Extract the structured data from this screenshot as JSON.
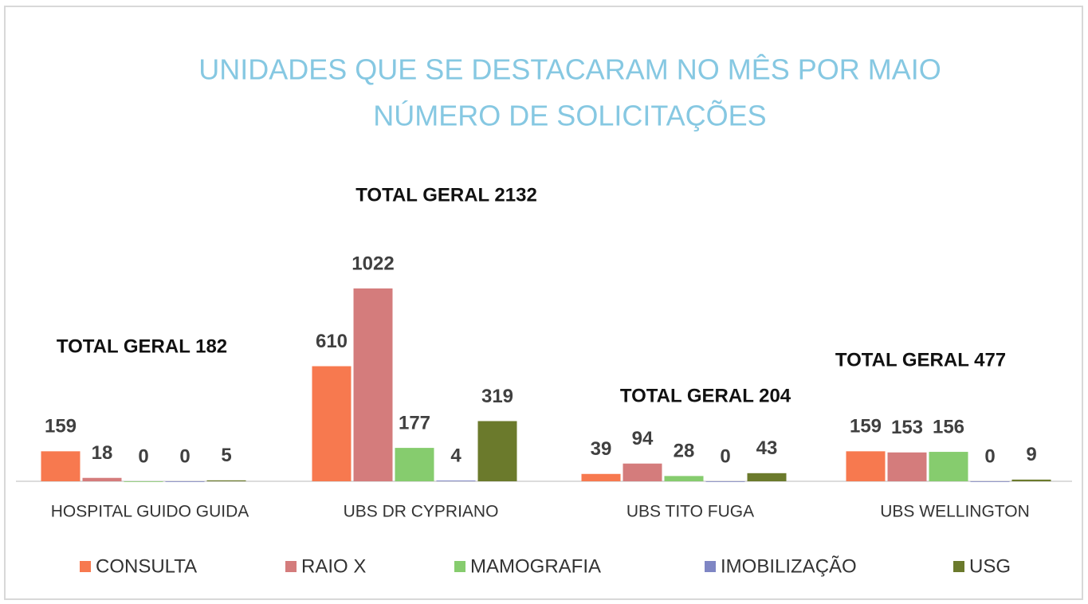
{
  "chart_data": {
    "type": "bar",
    "title": "UNIDADES QUE SE DESTACARAM NO MÊS POR MAIO",
    "subtitle": "NÚMERO DE SOLICITAÇÕES",
    "categories": [
      "HOSPITAL GUIDO GUIDA",
      "UBS DR CYPRIANO",
      "UBS TITO FUGA",
      "UBS WELLINGTON"
    ],
    "series": [
      {
        "name": "CONSULTA",
        "color": "#f7794f",
        "values": [
          159,
          610,
          39,
          159
        ]
      },
      {
        "name": "RAIO X",
        "color": "#d47c7c",
        "values": [
          18,
          1022,
          94,
          153
        ]
      },
      {
        "name": "MAMOGRAFIA",
        "color": "#86cc6e",
        "values": [
          0,
          177,
          28,
          156
        ]
      },
      {
        "name": "IMOBILIZAÇÃO",
        "color": "#7f86c4",
        "values": [
          0,
          4,
          0,
          0
        ]
      },
      {
        "name": "USG",
        "color": "#6b7a2c",
        "values": [
          5,
          319,
          43,
          9
        ]
      }
    ],
    "annotations": [
      "TOTAL GERAL 182",
      "TOTAL GERAL 2132",
      "TOTAL GERAL 204",
      "TOTAL GERAL 477"
    ]
  }
}
